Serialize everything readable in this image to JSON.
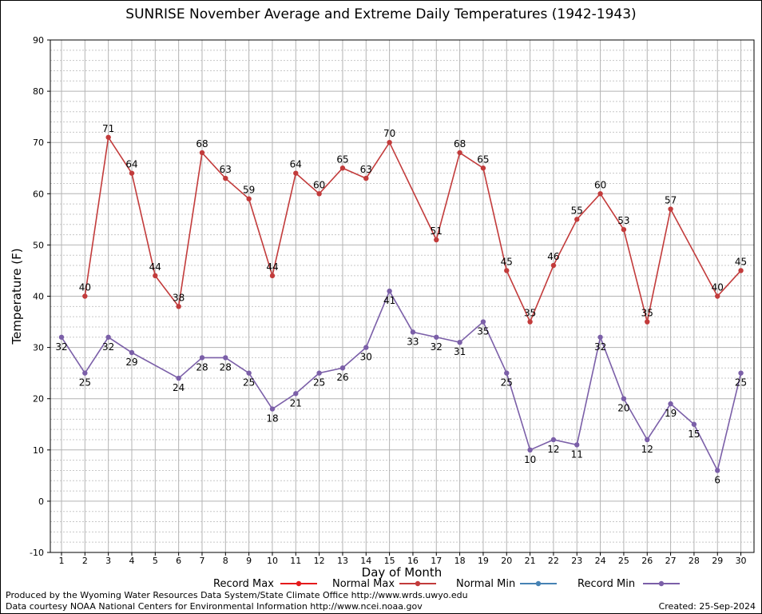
{
  "chart_data": {
    "type": "line",
    "title": "SUNRISE November Average and Extreme Daily Temperatures (1942-1943)",
    "xlabel": "Day of Month",
    "ylabel": "Temperature (F)",
    "xlim": [
      1,
      30
    ],
    "ylim": [
      -10,
      90
    ],
    "yticks": [
      -10,
      0,
      10,
      20,
      30,
      40,
      50,
      60,
      70,
      80,
      90
    ],
    "grid": true,
    "legend_placement": "bottom",
    "legend": [
      {
        "name": "Record Max",
        "color": "#e41a1c"
      },
      {
        "name": "Normal Max",
        "color": "#c23b3b"
      },
      {
        "name": "Normal Min",
        "color": "#4682b4"
      },
      {
        "name": "Record Min",
        "color": "#7b5fa8"
      }
    ],
    "series": [
      {
        "name": "Normal Max",
        "color": "#c23b3b",
        "points": [
          [
            2,
            40
          ],
          [
            3,
            71
          ],
          [
            4,
            64
          ],
          [
            5,
            44
          ],
          [
            6,
            38
          ],
          [
            7,
            68
          ],
          [
            8,
            63
          ],
          [
            9,
            59
          ],
          [
            10,
            44
          ],
          [
            11,
            64
          ],
          [
            12,
            60
          ],
          [
            13,
            65
          ],
          [
            14,
            63
          ],
          [
            15,
            70
          ],
          [
            17,
            51
          ],
          [
            18,
            68
          ],
          [
            19,
            65
          ],
          [
            20,
            45
          ],
          [
            21,
            35
          ],
          [
            22,
            46
          ],
          [
            23,
            55
          ],
          [
            24,
            60
          ],
          [
            25,
            53
          ],
          [
            26,
            35
          ],
          [
            27,
            57
          ],
          [
            29,
            40
          ],
          [
            30,
            45
          ]
        ]
      },
      {
        "name": "Record Min",
        "color": "#7b5fa8",
        "points": [
          [
            1,
            32
          ],
          [
            2,
            25
          ],
          [
            3,
            32
          ],
          [
            4,
            29
          ],
          [
            6,
            24
          ],
          [
            7,
            28
          ],
          [
            8,
            28
          ],
          [
            9,
            25
          ],
          [
            10,
            18
          ],
          [
            11,
            21
          ],
          [
            12,
            25
          ],
          [
            13,
            26
          ],
          [
            14,
            30
          ],
          [
            15,
            41
          ],
          [
            16,
            33
          ],
          [
            17,
            32
          ],
          [
            18,
            31
          ],
          [
            19,
            35
          ],
          [
            20,
            25
          ],
          [
            21,
            10
          ],
          [
            22,
            12
          ],
          [
            23,
            11
          ],
          [
            24,
            32
          ],
          [
            25,
            20
          ],
          [
            26,
            12
          ],
          [
            27,
            19
          ],
          [
            28,
            15
          ],
          [
            29,
            6
          ],
          [
            30,
            25
          ]
        ]
      }
    ]
  },
  "footer": {
    "line1": "Produced by the Wyoming Water Resources Data System/State Climate Office http://www.wrds.uwyo.edu",
    "line2": "Data courtesy NOAA National Centers for Environmental Information http://www.ncei.noaa.gov",
    "created": "Created:  25-Sep-2024"
  }
}
